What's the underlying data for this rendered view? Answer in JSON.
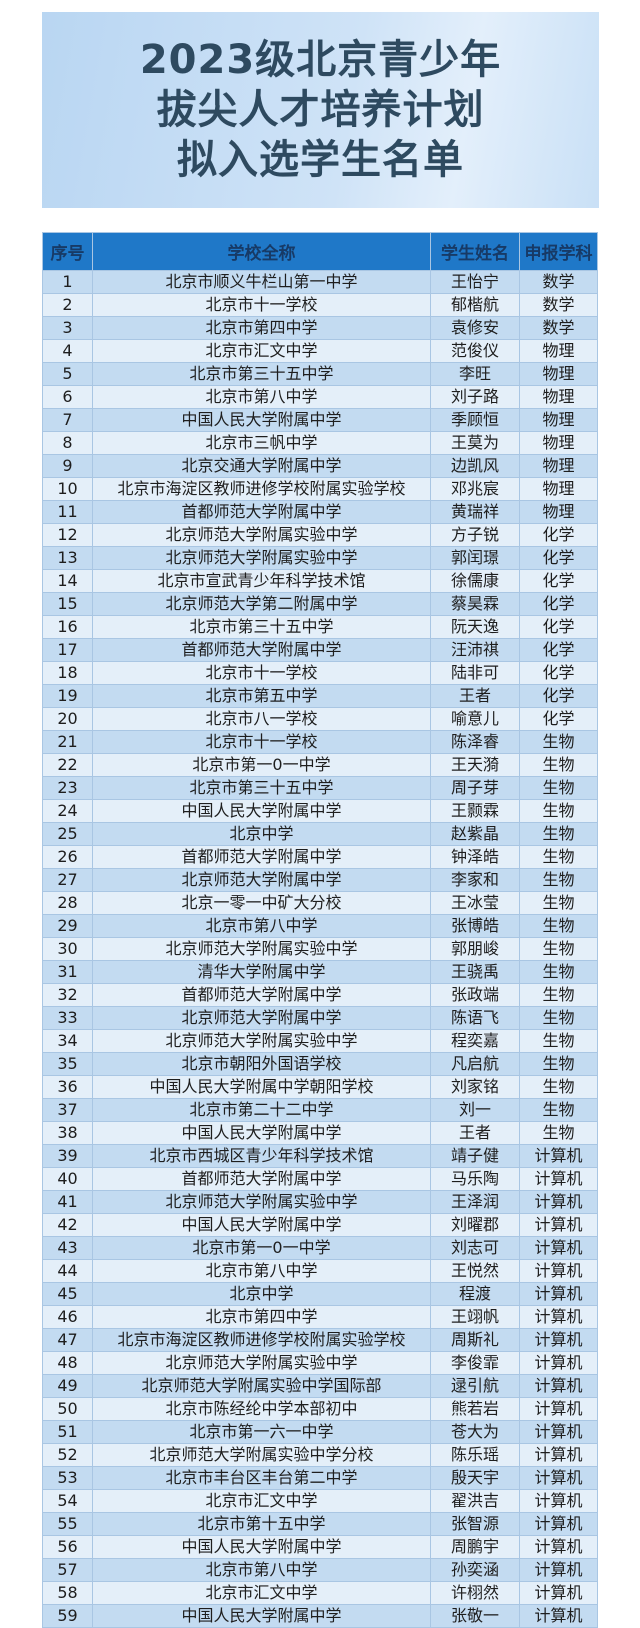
{
  "title": {
    "lines": [
      "2023级北京青少年",
      "拔尖人才培养计划",
      "拟入选学生名单"
    ]
  },
  "table": {
    "headers": [
      "序号",
      "学校全称",
      "学生姓名",
      "申报学科"
    ],
    "rows": [
      [
        "1",
        "北京市顺义牛栏山第一中学",
        "王怡宁",
        "数学"
      ],
      [
        "2",
        "北京市十一学校",
        "郁楷航",
        "数学"
      ],
      [
        "3",
        "北京市第四中学",
        "袁修安",
        "数学"
      ],
      [
        "4",
        "北京市汇文中学",
        "范俊仪",
        "物理"
      ],
      [
        "5",
        "北京市第三十五中学",
        "李旺",
        "物理"
      ],
      [
        "6",
        "北京市第八中学",
        "刘子路",
        "物理"
      ],
      [
        "7",
        "中国人民大学附属中学",
        "季顾恒",
        "物理"
      ],
      [
        "8",
        "北京市三帆中学",
        "王莫为",
        "物理"
      ],
      [
        "9",
        "北京交通大学附属中学",
        "边凯风",
        "物理"
      ],
      [
        "10",
        "北京市海淀区教师进修学校附属实验学校",
        "邓兆宸",
        "物理"
      ],
      [
        "11",
        "首都师范大学附属中学",
        "黄瑞祥",
        "物理"
      ],
      [
        "12",
        "北京师范大学附属实验中学",
        "方子锐",
        "化学"
      ],
      [
        "13",
        "北京师范大学附属实验中学",
        "郭闰璟",
        "化学"
      ],
      [
        "14",
        "北京市宣武青少年科学技术馆",
        "徐儒康",
        "化学"
      ],
      [
        "15",
        "北京师范大学第二附属中学",
        "蔡昊霖",
        "化学"
      ],
      [
        "16",
        "北京市第三十五中学",
        "阮天逸",
        "化学"
      ],
      [
        "17",
        "首都师范大学附属中学",
        "汪沛祺",
        "化学"
      ],
      [
        "18",
        "北京市十一学校",
        "陆非可",
        "化学"
      ],
      [
        "19",
        "北京市第五中学",
        "王者",
        "化学"
      ],
      [
        "20",
        "北京市八一学校",
        "喻意儿",
        "化学"
      ],
      [
        "21",
        "北京市十一学校",
        "陈泽睿",
        "生物"
      ],
      [
        "22",
        "北京市第一0一中学",
        "王天漪",
        "生物"
      ],
      [
        "23",
        "北京市第三十五中学",
        "周子芽",
        "生物"
      ],
      [
        "24",
        "中国人民大学附属中学",
        "王颢霖",
        "生物"
      ],
      [
        "25",
        "北京中学",
        "赵紫晶",
        "生物"
      ],
      [
        "26",
        "首都师范大学附属中学",
        "钟泽皓",
        "生物"
      ],
      [
        "27",
        "北京师范大学附属中学",
        "李家和",
        "生物"
      ],
      [
        "28",
        "北京一零一中矿大分校",
        "王冰莹",
        "生物"
      ],
      [
        "29",
        "北京市第八中学",
        "张博皓",
        "生物"
      ],
      [
        "30",
        "北京师范大学附属实验中学",
        "郭朋峻",
        "生物"
      ],
      [
        "31",
        "清华大学附属中学",
        "王骁禹",
        "生物"
      ],
      [
        "32",
        "首都师范大学附属中学",
        "张政端",
        "生物"
      ],
      [
        "33",
        "北京师范大学附属中学",
        "陈语飞",
        "生物"
      ],
      [
        "34",
        "北京师范大学附属实验中学",
        "程奕嘉",
        "生物"
      ],
      [
        "35",
        "北京市朝阳外国语学校",
        "凡启航",
        "生物"
      ],
      [
        "36",
        "中国人民大学附属中学朝阳学校",
        "刘家铭",
        "生物"
      ],
      [
        "37",
        "北京市第二十二中学",
        "刘一",
        "生物"
      ],
      [
        "38",
        "中国人民大学附属中学",
        "王者",
        "生物"
      ],
      [
        "39",
        "北京市西城区青少年科学技术馆",
        "靖子健",
        "计算机"
      ],
      [
        "40",
        "首都师范大学附属中学",
        "马乐陶",
        "计算机"
      ],
      [
        "41",
        "北京师范大学附属实验中学",
        "王泽润",
        "计算机"
      ],
      [
        "42",
        "中国人民大学附属中学",
        "刘曜郡",
        "计算机"
      ],
      [
        "43",
        "北京市第一0一中学",
        "刘志可",
        "计算机"
      ],
      [
        "44",
        "北京市第八中学",
        "王悦然",
        "计算机"
      ],
      [
        "45",
        "北京中学",
        "程渡",
        "计算机"
      ],
      [
        "46",
        "北京市第四中学",
        "王翊帆",
        "计算机"
      ],
      [
        "47",
        "北京市海淀区教师进修学校附属实验学校",
        "周斯礼",
        "计算机"
      ],
      [
        "48",
        "北京师范大学附属实验中学",
        "李俊霏",
        "计算机"
      ],
      [
        "49",
        "北京师范大学附属实验中学国际部",
        "逯引航",
        "计算机"
      ],
      [
        "50",
        "北京市陈经纶中学本部初中",
        "熊若岩",
        "计算机"
      ],
      [
        "51",
        "北京市第一六一中学",
        "苍大为",
        "计算机"
      ],
      [
        "52",
        "北京师范大学附属实验中学分校",
        "陈乐瑶",
        "计算机"
      ],
      [
        "53",
        "北京市丰台区丰台第二中学",
        "殷天宇",
        "计算机"
      ],
      [
        "54",
        "北京市汇文中学",
        "翟洪吉",
        "计算机"
      ],
      [
        "55",
        "北京市第十五中学",
        "张智源",
        "计算机"
      ],
      [
        "56",
        "中国人民大学附属中学",
        "周鹏宇",
        "计算机"
      ],
      [
        "57",
        "北京市第八中学",
        "孙奕涵",
        "计算机"
      ],
      [
        "58",
        "北京市汇文中学",
        "许栩然",
        "计算机"
      ],
      [
        "59",
        "中国人民大学附属中学",
        "张敬一",
        "计算机"
      ]
    ]
  },
  "colors": {
    "header_bg": "#1f78c8",
    "header_text": "#173a66",
    "row_odd": "#c3dbf1",
    "row_even": "#e4eff9",
    "title_text": "#2e4a60"
  }
}
